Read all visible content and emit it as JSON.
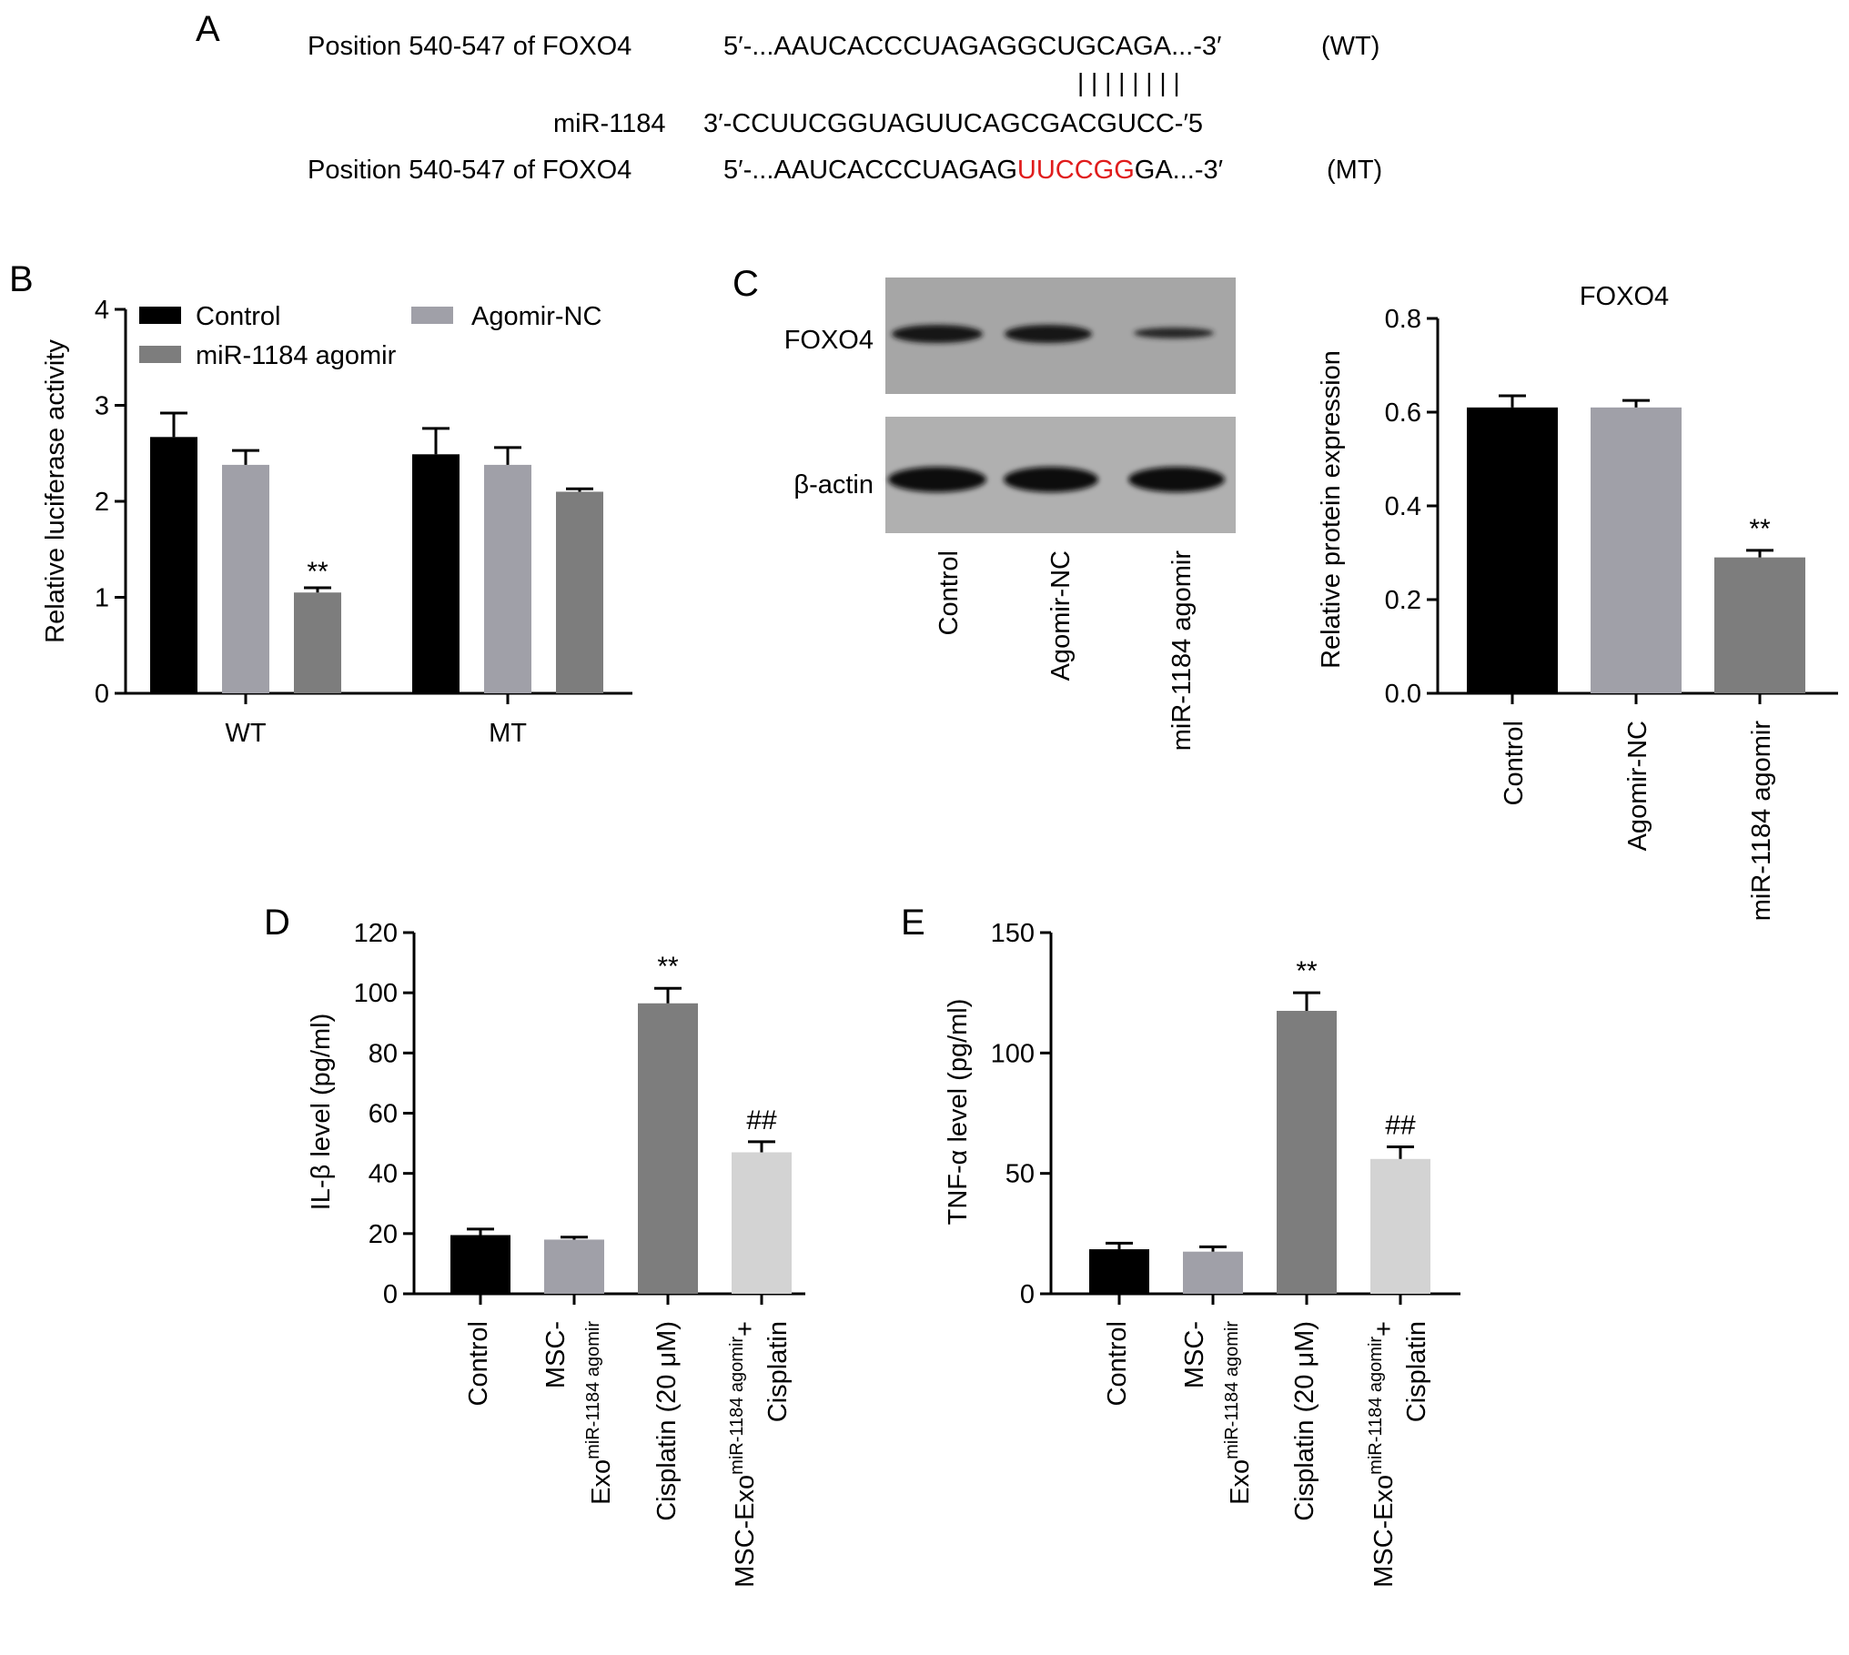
{
  "panelA": {
    "letter": "A",
    "row1": {
      "label": "Position 540-547 of FOXO4",
      "prefix": "5′-...AAUCACCCUAGAGGCUGCAGA...-3′",
      "suffix": "(WT)"
    },
    "pairing_marks": "|  |  |  |  |  |  |  |",
    "row2": {
      "label": "miR-1184",
      "seq": "3′-CCUUCGGUAGUUCAGCGACGUCC-′5"
    },
    "row3": {
      "label": "Position 540-547 of FOXO4",
      "prefix": "5′-...AAUCACCCUAGAG",
      "mutated": "UUCCGG",
      "tail": "GA...-3′",
      "suffix": "(MT)"
    },
    "mutation_color": "#e01c1c"
  },
  "panelC_blot": {
    "letter": "C",
    "bands": [
      "FOXO4",
      "β-actin"
    ],
    "lanes": [
      "Control",
      "Agomir-NC",
      "miR-1184 agomir"
    ]
  },
  "colors": {
    "black": "#000000",
    "lightgray": "#a0a0a8",
    "darkgray": "#7d7d7d",
    "verylight": "#d3d3d3"
  },
  "chart_data": [
    {
      "panel": "B",
      "type": "bar",
      "title": "",
      "ylabel": "Relative luciferase activity",
      "ylim": [
        0,
        4
      ],
      "yticks": [
        0,
        1,
        2,
        3,
        4
      ],
      "categories": [
        "WT",
        "MT"
      ],
      "legend_position": "top",
      "series": [
        {
          "name": "Control",
          "color": "#000000",
          "values": [
            2.67,
            2.49
          ],
          "errors": [
            0.25,
            0.27
          ]
        },
        {
          "name": "Agomir-NC",
          "color": "#a0a0a8",
          "values": [
            2.38,
            2.38
          ],
          "errors": [
            0.15,
            0.18
          ]
        },
        {
          "name": "miR-1184 agomir",
          "color": "#7d7d7d",
          "values": [
            1.05,
            2.1
          ],
          "errors": [
            0.05,
            0.03
          ]
        }
      ],
      "annotations": [
        {
          "category": 0,
          "series": 2,
          "text": "**"
        }
      ]
    },
    {
      "panel": "C",
      "type": "bar",
      "title": "FOXO4",
      "ylabel": "Relative protein expression",
      "ylim": [
        0,
        0.8
      ],
      "yticks": [
        "0.0",
        "0.2",
        "0.4",
        "0.6",
        "0.8"
      ],
      "categories": [
        "Control",
        "Agomir-NC",
        "miR-1184 agomir"
      ],
      "values": [
        0.61,
        0.61,
        0.29
      ],
      "errors": [
        0.025,
        0.015,
        0.015
      ],
      "colors": [
        "#000000",
        "#a0a0a8",
        "#7d7d7d"
      ],
      "annotations": [
        {
          "index": 2,
          "text": "**"
        }
      ]
    },
    {
      "panel": "D",
      "type": "bar",
      "title": "",
      "ylabel": "IL-β level (pg/ml)",
      "ylim": [
        0,
        120
      ],
      "yticks": [
        0,
        20,
        40,
        60,
        80,
        100,
        120
      ],
      "categories": [
        "Control",
        "MSC-Exo miR-1184 agomir",
        "Cisplatin (20 μM)",
        "MSC-Exo miR-1184 agomir + Cisplatin"
      ],
      "values": [
        19.5,
        18.0,
        96.5,
        47.0
      ],
      "errors": [
        2.0,
        0.8,
        5.0,
        3.5
      ],
      "colors": [
        "#000000",
        "#a0a0a8",
        "#7d7d7d",
        "#d3d3d3"
      ],
      "annotations": [
        {
          "index": 2,
          "text": "**"
        },
        {
          "index": 3,
          "text": "##"
        }
      ]
    },
    {
      "panel": "E",
      "type": "bar",
      "title": "",
      "ylabel": "TNF-α level (pg/ml)",
      "ylim": [
        0,
        150
      ],
      "yticks": [
        0,
        50,
        100,
        150
      ],
      "categories": [
        "Control",
        "MSC-Exo miR-1184 agomir",
        "Cisplatin (20 μM)",
        "MSC-Exo miR-1184 agomir + Cisplatin"
      ],
      "values": [
        18.5,
        17.5,
        117.5,
        56.0
      ],
      "errors": [
        2.5,
        2.0,
        7.5,
        5.0
      ],
      "colors": [
        "#000000",
        "#a0a0a8",
        "#7d7d7d",
        "#d3d3d3"
      ],
      "annotations": [
        {
          "index": 2,
          "text": "**"
        },
        {
          "index": 3,
          "text": "##"
        }
      ]
    }
  ],
  "labels": {
    "B_letter": "B",
    "D_letter": "D",
    "E_letter": "E",
    "exo_prefix": "MSC-",
    "exo_main": "Exo",
    "exo_sup": "miR-1184 agomir",
    "exo_full": "MSC-Exo",
    "plus": "+",
    "cisplatin": "Cisplatin",
    "cis_dose": "Cisplatin (20 μM)",
    "control": "Control"
  }
}
